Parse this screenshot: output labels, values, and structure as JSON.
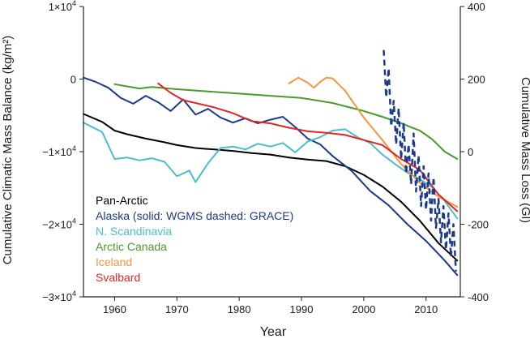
{
  "chart_data": {
    "type": "line",
    "xlabel": "Year",
    "ylabel_left": "Cumulative Climatic Mass Balance (kg/m²)",
    "ylabel_right": "Cumulative Mass Loss (Gl)",
    "xlim": [
      1955,
      2015.5
    ],
    "ylim_left": [
      -30000,
      10000
    ],
    "ylim_right": [
      -400,
      400
    ],
    "x_ticks": [
      1960,
      1970,
      1980,
      1990,
      2000,
      2010
    ],
    "x_tick_labels": [
      "1960",
      "1970",
      "1980",
      "1990",
      "2000",
      "2010"
    ],
    "y_left_ticks": [
      10000,
      0,
      -10000,
      -20000,
      -30000
    ],
    "y_left_tick_labels": [
      {
        "mant": "1×10",
        "exp": "4"
      },
      {
        "mant": "0",
        "exp": ""
      },
      {
        "mant": "−1×10",
        "exp": "4"
      },
      {
        "mant": "−2×10",
        "exp": "4"
      },
      {
        "mant": "−3×10",
        "exp": "4"
      }
    ],
    "y_right_ticks": [
      400,
      200,
      0,
      -200,
      -400
    ],
    "y_right_tick_labels": [
      "400",
      "200",
      "0",
      "-200",
      "-400"
    ],
    "legend_position": "bottom-left",
    "series": [
      {
        "name": "Pan-Arctic",
        "color": "#000000",
        "axis": "left",
        "x": [
          1955,
          1958,
          1960,
          1962,
          1965,
          1968,
          1970,
          1973,
          1976,
          1979,
          1982,
          1985,
          1988,
          1991,
          1994,
          1997,
          2000,
          2003,
          2006,
          2009,
          2012,
          2015
        ],
        "y": [
          -4800,
          -5900,
          -7100,
          -7600,
          -8200,
          -8700,
          -9100,
          -9500,
          -9700,
          -9900,
          -10200,
          -10400,
          -10800,
          -11100,
          -11300,
          -12000,
          -13200,
          -14800,
          -16900,
          -19500,
          -22600,
          -25000
        ]
      },
      {
        "name": "Alaska (solid: WGMS dashed: GRACE)",
        "color": "#1c3a8c",
        "axis": "left",
        "x": [
          1955,
          1957,
          1959,
          1961,
          1963,
          1965,
          1967,
          1969,
          1971,
          1973,
          1975,
          1977,
          1979,
          1981,
          1983,
          1985,
          1987,
          1989,
          1991,
          1993,
          1995,
          1998,
          2001,
          2004,
          2007,
          2010,
          2013,
          2015
        ],
        "y": [
          200,
          -400,
          -1200,
          -2600,
          -3400,
          -2300,
          -3200,
          -4400,
          -2800,
          -4900,
          -4100,
          -5300,
          -6000,
          -5400,
          -6100,
          -5600,
          -5200,
          -6600,
          -8200,
          -9000,
          -10600,
          -12600,
          -15400,
          -17400,
          -20000,
          -22300,
          -25000,
          -27000
        ]
      },
      {
        "name": "N. Scandinavia",
        "color": "#49bfc9",
        "axis": "left",
        "x": [
          1955,
          1958,
          1960,
          1962,
          1964,
          1966,
          1968,
          1970,
          1972,
          1973,
          1975,
          1977,
          1979,
          1981,
          1983,
          1985,
          1987,
          1989,
          1991,
          1993,
          1995,
          1997,
          1999,
          2001,
          2003,
          2005,
          2007,
          2009,
          2011,
          2013,
          2015
        ],
        "y": [
          -6000,
          -7300,
          -11000,
          -10800,
          -11200,
          -10900,
          -11400,
          -13400,
          -12600,
          -14200,
          -11600,
          -9500,
          -9300,
          -9700,
          -8900,
          -9300,
          -8800,
          -10100,
          -8600,
          -8000,
          -7100,
          -6900,
          -8000,
          -8800,
          -10400,
          -11700,
          -12900,
          -13800,
          -14900,
          -16800,
          -19200
        ]
      },
      {
        "name": "Arctic Canada",
        "color": "#4a9a2c",
        "axis": "left",
        "x": [
          1960,
          1962,
          1964,
          1966,
          1970,
          1975,
          1980,
          1985,
          1990,
          1995,
          2000,
          2003,
          2006,
          2009,
          2011,
          2013,
          2015
        ],
        "y": [
          -700,
          -1000,
          -1300,
          -1100,
          -1400,
          -1700,
          -2000,
          -2300,
          -2600,
          -3300,
          -4400,
          -5200,
          -6100,
          -7100,
          -8300,
          -10000,
          -11000
        ]
      },
      {
        "name": "Iceland",
        "color": "#f7953d",
        "axis": "left",
        "x": [
          1988,
          1989.5,
          1991,
          1992,
          1993,
          1994,
          1995,
          1997,
          2000,
          2003,
          2006,
          2009,
          2012,
          2015
        ],
        "y": [
          -600,
          200,
          -500,
          -1200,
          -400,
          200,
          100,
          -1600,
          -5300,
          -8400,
          -11700,
          -14300,
          -16200,
          -17600
        ]
      },
      {
        "name": "Svalbard",
        "color": "#e02626",
        "axis": "left",
        "x": [
          1967,
          1969,
          1971,
          1973,
          1976,
          1979,
          1982,
          1985,
          1988,
          1991,
          1994,
          1997,
          2000,
          2003,
          2006,
          2009,
          2012,
          2015
        ],
        "y": [
          -600,
          -1900,
          -2900,
          -3300,
          -3900,
          -4700,
          -5800,
          -6100,
          -6700,
          -7200,
          -7400,
          -7700,
          -8400,
          -9100,
          -11000,
          -12500,
          -15900,
          -18200
        ]
      },
      {
        "name": "",
        "color": "#1c3a8c",
        "axis": "right",
        "dashed": true,
        "x": [
          2003.2,
          2003.6,
          2004.0,
          2004.4,
          2004.8,
          2005.2,
          2005.6,
          2006.0,
          2006.4,
          2006.8,
          2007.2,
          2007.6,
          2008.0,
          2008.4,
          2008.8,
          2009.2,
          2009.6,
          2010.0,
          2010.4,
          2010.8,
          2011.2,
          2011.6,
          2012.0,
          2012.4,
          2012.8,
          2013.2,
          2013.6,
          2014.0,
          2014.4,
          2014.8
        ],
        "y": [
          280,
          150,
          230,
          70,
          140,
          20,
          120,
          -20,
          80,
          -60,
          20,
          -90,
          50,
          -110,
          -10,
          -150,
          -40,
          -160,
          -60,
          -190,
          -70,
          -210,
          -130,
          -250,
          -150,
          -270,
          -170,
          -290,
          -200,
          -330
        ]
      }
    ]
  }
}
